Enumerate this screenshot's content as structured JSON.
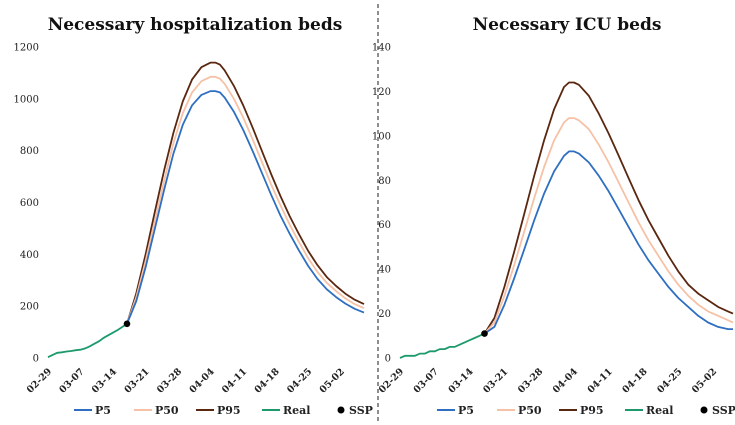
{
  "colors": {
    "P5": "#2e6fc1",
    "P50": "#f6c1a6",
    "P95": "#5a2710",
    "Real": "#1d9a6c",
    "SSP": "#000000",
    "divider": "#444444"
  },
  "legend": [
    {
      "label": "P5",
      "color": "#2e6fc1",
      "kind": "line"
    },
    {
      "label": "P50",
      "color": "#f6c1a6",
      "kind": "line"
    },
    {
      "label": "P95",
      "color": "#5a2710",
      "kind": "line"
    },
    {
      "label": "Real",
      "color": "#1d9a6c",
      "kind": "line"
    },
    {
      "label": "SSP",
      "color": "#000000",
      "kind": "dot"
    }
  ],
  "chart_data": [
    {
      "type": "line",
      "title": "Necessary hospitalization beds",
      "xlabel": "",
      "ylabel": "",
      "x_tick_labels": [
        "02-29",
        "03-07",
        "03-14",
        "03-21",
        "03-28",
        "04-04",
        "04-11",
        "04-18",
        "04-25",
        "05-02"
      ],
      "x_tick_days": [
        0,
        7,
        14,
        21,
        28,
        35,
        42,
        49,
        56,
        63
      ],
      "xlim": [
        0,
        68
      ],
      "ylim": [
        0,
        1200
      ],
      "y_ticks": [
        0,
        200,
        400,
        600,
        800,
        1000,
        1200
      ],
      "grid": false,
      "legend_position": "bottom",
      "real": {
        "x": [
          0,
          1,
          2,
          3,
          4,
          5,
          6,
          7,
          8,
          9,
          10,
          11,
          12,
          13,
          14,
          15,
          16,
          17
        ],
        "values": [
          3,
          12,
          20,
          22,
          25,
          27,
          30,
          32,
          37,
          45,
          55,
          65,
          78,
          88,
          98,
          108,
          120,
          132
        ]
      },
      "ssp": {
        "x": 17,
        "y": 132
      },
      "series": [
        {
          "name": "P5",
          "x": [
            17,
            19,
            21,
            23,
            25,
            27,
            29,
            31,
            33,
            35,
            36,
            37,
            38,
            40,
            42,
            44,
            46,
            48,
            50,
            52,
            54,
            56,
            58,
            60,
            62,
            64,
            66,
            68
          ],
          "values": [
            132,
            220,
            350,
            500,
            650,
            790,
            900,
            975,
            1015,
            1030,
            1030,
            1025,
            1005,
            950,
            880,
            800,
            715,
            630,
            550,
            480,
            415,
            355,
            305,
            265,
            235,
            210,
            190,
            175
          ]
        },
        {
          "name": "P50",
          "x": [
            17,
            19,
            21,
            23,
            25,
            27,
            29,
            31,
            33,
            35,
            36,
            37,
            38,
            40,
            42,
            44,
            46,
            48,
            50,
            52,
            54,
            56,
            58,
            60,
            62,
            64,
            66,
            68
          ],
          "values": [
            132,
            235,
            375,
            530,
            685,
            830,
            945,
            1025,
            1068,
            1085,
            1085,
            1078,
            1058,
            1000,
            928,
            845,
            758,
            670,
            590,
            515,
            448,
            385,
            332,
            290,
            258,
            230,
            208,
            192
          ]
        },
        {
          "name": "P95",
          "x": [
            17,
            19,
            21,
            23,
            25,
            27,
            29,
            31,
            33,
            35,
            36,
            37,
            38,
            40,
            42,
            44,
            46,
            48,
            50,
            52,
            54,
            56,
            58,
            60,
            62,
            64,
            66,
            68
          ],
          "values": [
            132,
            250,
            400,
            565,
            725,
            870,
            990,
            1075,
            1122,
            1140,
            1140,
            1132,
            1110,
            1050,
            975,
            890,
            800,
            710,
            625,
            548,
            478,
            413,
            358,
            312,
            278,
            248,
            225,
            208
          ]
        }
      ]
    },
    {
      "type": "line",
      "title": "Necessary ICU beds",
      "xlabel": "",
      "ylabel": "",
      "x_tick_labels": [
        "02-29",
        "03-07",
        "03-14",
        "03-21",
        "03-28",
        "04-04",
        "04-11",
        "04-18",
        "04-25",
        "05-02"
      ],
      "x_tick_days": [
        0,
        7,
        14,
        21,
        28,
        35,
        42,
        49,
        56,
        63
      ],
      "xlim": [
        0,
        67
      ],
      "ylim": [
        0,
        140
      ],
      "y_ticks": [
        0,
        20,
        40,
        60,
        80,
        100,
        120,
        140
      ],
      "grid": false,
      "legend_position": "bottom",
      "real": {
        "x": [
          0,
          1,
          2,
          3,
          4,
          5,
          6,
          7,
          8,
          9,
          10,
          11,
          12,
          13,
          14,
          15,
          16,
          17
        ],
        "values": [
          0,
          1,
          1,
          1,
          2,
          2,
          3,
          3,
          4,
          4,
          5,
          5,
          6,
          7,
          8,
          9,
          10,
          11
        ]
      },
      "ssp": {
        "x": 17,
        "y": 11
      },
      "series": [
        {
          "name": "P5",
          "x": [
            17,
            19,
            21,
            23,
            25,
            27,
            29,
            31,
            33,
            34,
            35,
            36,
            38,
            40,
            42,
            44,
            46,
            48,
            50,
            52,
            54,
            56,
            58,
            60,
            62,
            64,
            66,
            67
          ],
          "values": [
            11,
            14,
            24,
            36,
            49,
            62,
            74,
            84,
            91,
            93,
            93,
            92,
            88,
            82,
            75,
            67,
            59,
            51,
            44,
            38,
            32,
            27,
            23,
            19,
            16,
            14,
            13,
            13
          ]
        },
        {
          "name": "P50",
          "x": [
            17,
            19,
            21,
            23,
            25,
            27,
            29,
            31,
            33,
            34,
            35,
            36,
            38,
            40,
            42,
            44,
            46,
            48,
            50,
            52,
            54,
            56,
            58,
            60,
            62,
            64,
            66,
            67
          ],
          "values": [
            11,
            16,
            28,
            42,
            57,
            72,
            86,
            98,
            106,
            108,
            108,
            107,
            103,
            96,
            88,
            79,
            70,
            61,
            53,
            46,
            39,
            33,
            28,
            24,
            21,
            19,
            17,
            16
          ]
        },
        {
          "name": "P95",
          "x": [
            17,
            19,
            21,
            23,
            25,
            27,
            29,
            31,
            33,
            34,
            35,
            36,
            38,
            40,
            42,
            44,
            46,
            48,
            50,
            52,
            54,
            56,
            58,
            60,
            62,
            64,
            66,
            67
          ],
          "values": [
            11,
            18,
            32,
            48,
            65,
            82,
            98,
            112,
            122,
            124,
            124,
            123,
            118,
            110,
            101,
            91,
            81,
            71,
            62,
            54,
            46,
            39,
            33,
            29,
            26,
            23,
            21,
            20
          ]
        }
      ]
    }
  ]
}
